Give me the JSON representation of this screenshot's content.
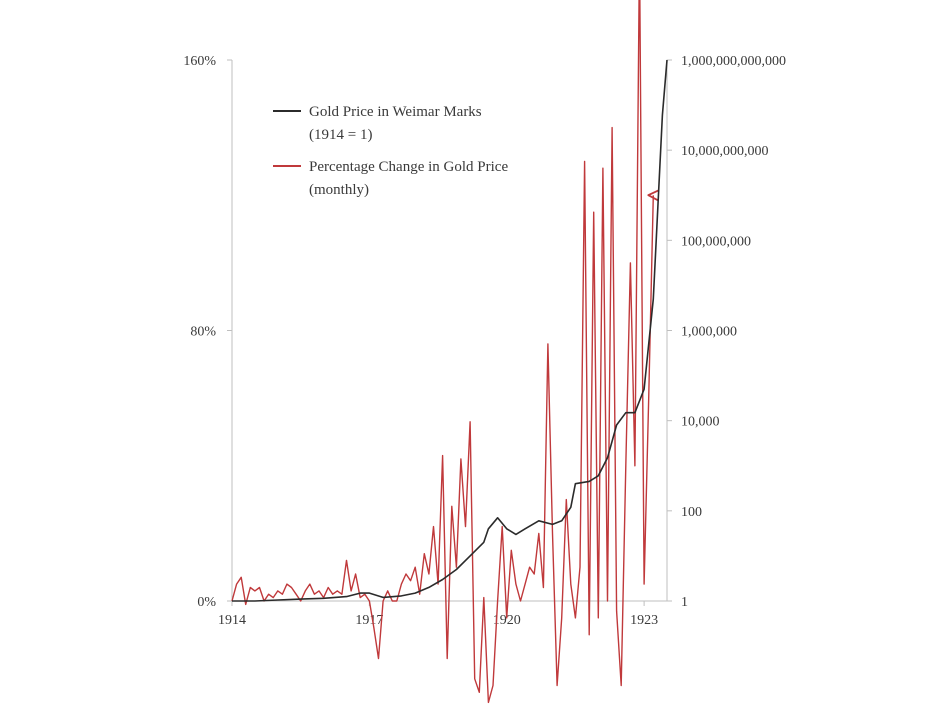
{
  "chart_data": {
    "type": "line",
    "title": "",
    "xlabel": "",
    "ylabel_left": "",
    "ylabel_right": "",
    "x_ticks": [
      "1914",
      "1917",
      "1920",
      "1923"
    ],
    "x_range": [
      1914.0,
      1923.5
    ],
    "y_left_ticks": [
      "0%",
      "80%",
      "160%"
    ],
    "y_left_range": [
      0,
      160
    ],
    "y_right_scale": "log",
    "y_right_ticks": [
      "1",
      "100",
      "10,000",
      "1,000,000",
      "100,000,000",
      "10,000,000,000",
      "1,000,000,000,000"
    ],
    "y_right_range": [
      1,
      1000000000000
    ],
    "grid": false,
    "legend_position": "top-left",
    "legend": [
      {
        "line1": "Gold Price in Weimar Marks",
        "line2": "(1914 = 1)",
        "color": "#2b2b2b"
      },
      {
        "line1": "Percentage Change in Gold Price",
        "line2": "(monthly)",
        "color": "#c0393b"
      }
    ],
    "series": [
      {
        "name": "Gold Price in Weimar Marks (1914 = 1)",
        "axis": "right",
        "color": "#2b2b2b",
        "x": [
          1914.0,
          1914.5,
          1915.0,
          1915.5,
          1916.0,
          1916.5,
          1916.8,
          1917.0,
          1917.3,
          1917.7,
          1918.0,
          1918.3,
          1918.6,
          1918.9,
          1919.2,
          1919.5,
          1919.6,
          1919.8,
          1920.0,
          1920.2,
          1920.4,
          1920.7,
          1921.0,
          1921.2,
          1921.4,
          1921.5,
          1921.8,
          1922.0,
          1922.2,
          1922.4,
          1922.6,
          1922.8,
          1923.0,
          1923.2,
          1923.4,
          1923.5
        ],
        "y": [
          1,
          1,
          1.05,
          1.1,
          1.15,
          1.25,
          1.5,
          1.5,
          1.2,
          1.3,
          1.5,
          2,
          3,
          5,
          10,
          20,
          40,
          70,
          40,
          30,
          40,
          60,
          50,
          60,
          120,
          400,
          450,
          600,
          1500,
          8000,
          15000,
          15000,
          50000,
          5000000,
          60000000000,
          1000000000000
        ]
      },
      {
        "name": "Percentage Change in Gold Price (monthly)",
        "axis": "left",
        "color": "#c0393b",
        "x": [
          1914.0,
          1914.1,
          1914.2,
          1914.3,
          1914.4,
          1914.5,
          1914.6,
          1914.7,
          1914.8,
          1914.9,
          1915.0,
          1915.1,
          1915.2,
          1915.3,
          1915.4,
          1915.5,
          1915.6,
          1915.7,
          1915.8,
          1915.9,
          1916.0,
          1916.1,
          1916.2,
          1916.3,
          1916.4,
          1916.5,
          1916.6,
          1916.7,
          1916.8,
          1916.9,
          1917.0,
          1917.1,
          1917.2,
          1917.3,
          1917.4,
          1917.5,
          1917.6,
          1917.7,
          1917.8,
          1917.9,
          1918.0,
          1918.1,
          1918.2,
          1918.3,
          1918.4,
          1918.5,
          1918.6,
          1918.7,
          1918.8,
          1918.9,
          1919.0,
          1919.1,
          1919.2,
          1919.3,
          1919.4,
          1919.5,
          1919.6,
          1919.7,
          1919.8,
          1919.9,
          1920.0,
          1920.1,
          1920.2,
          1920.3,
          1920.4,
          1920.5,
          1920.6,
          1920.7,
          1920.8,
          1920.9,
          1921.0,
          1921.1,
          1921.2,
          1921.3,
          1921.4,
          1921.5,
          1921.6,
          1921.7,
          1921.8,
          1921.9,
          1922.0,
          1922.1,
          1922.2,
          1922.3,
          1922.4,
          1922.5,
          1922.6,
          1922.7,
          1922.8,
          1922.9,
          1923.0,
          1923.1,
          1923.2
        ],
        "y": [
          0,
          5,
          7,
          -1,
          4,
          3,
          4,
          0,
          2,
          1,
          3,
          2,
          5,
          4,
          2,
          0,
          3,
          5,
          2,
          3,
          1,
          4,
          2,
          3,
          2,
          12,
          3,
          8,
          1,
          2,
          0,
          -8,
          -17,
          0,
          3,
          0,
          0,
          5,
          8,
          6,
          10,
          2,
          14,
          8,
          22,
          5,
          43,
          -17,
          28,
          10,
          42,
          22,
          53,
          -23,
          -27,
          1,
          -30,
          -25,
          0,
          22,
          -5,
          15,
          5,
          0,
          5,
          10,
          8,
          20,
          4,
          76,
          20,
          -25,
          -5,
          30,
          5,
          -5,
          10,
          130,
          -10,
          115,
          -5,
          128,
          0,
          140,
          -3,
          -25,
          40,
          100,
          40,
          193,
          5,
          60,
          120
        ]
      }
    ]
  }
}
